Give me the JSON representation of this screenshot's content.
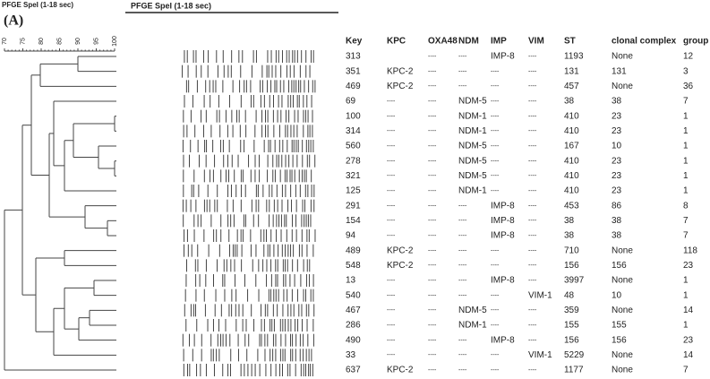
{
  "header": {
    "small_title": "PFGE SpeI (1-18 sec)",
    "gel_title": "PFGE SpeI (1-18 sec)",
    "panel": "(A)"
  },
  "scale": {
    "ticks": [
      70,
      75,
      80,
      85,
      90,
      95,
      100
    ]
  },
  "table": {
    "columns": [
      "Key",
      "KPC",
      "OXA48",
      "NDM",
      "IMP",
      "VIM",
      "ST",
      "clonal complex",
      "group"
    ],
    "rows": [
      [
        "313",
        null,
        "----",
        "----",
        "IMP-8",
        "----",
        "1193",
        "None",
        "12"
      ],
      [
        "351",
        "KPC-2",
        "----",
        "----",
        "----",
        "----",
        "131",
        "131",
        "3"
      ],
      [
        "469",
        "KPC-2",
        "----",
        "----",
        "----",
        "----",
        "457",
        "None",
        "36"
      ],
      [
        "69",
        "----",
        "----",
        "NDM-5",
        "----",
        "----",
        "38",
        "38",
        "7"
      ],
      [
        "100",
        "----",
        "----",
        "NDM-1",
        "----",
        "----",
        "410",
        "23",
        "1"
      ],
      [
        "314",
        "----",
        "----",
        "NDM-1",
        "----",
        "----",
        "410",
        "23",
        "1"
      ],
      [
        "560",
        "----",
        "----",
        "NDM-5",
        "----",
        "----",
        "167",
        "10",
        "1"
      ],
      [
        "278",
        "----",
        "----",
        "NDM-5",
        "----",
        "----",
        "410",
        "23",
        "1"
      ],
      [
        "321",
        "----",
        "----",
        "NDM-5",
        "----",
        "----",
        "410",
        "23",
        "1"
      ],
      [
        "125",
        "----",
        "----",
        "NDM-1",
        "----",
        "----",
        "410",
        "23",
        "1"
      ],
      [
        "291",
        "----",
        "----",
        "----",
        "IMP-8",
        "----",
        "453",
        "86",
        "8"
      ],
      [
        "154",
        "----",
        "----",
        "----",
        "IMP-8",
        "----",
        "38",
        "38",
        "7"
      ],
      [
        "94",
        "----",
        "----",
        "----",
        "IMP-8",
        "----",
        "38",
        "38",
        "7"
      ],
      [
        "489",
        "KPC-2",
        "----",
        "----",
        "----",
        "----",
        "710",
        "None",
        "118"
      ],
      [
        "548",
        "KPC-2",
        "----",
        "----",
        "----",
        "----",
        "156",
        "156",
        "23"
      ],
      [
        "13",
        "----",
        "----",
        "----",
        "IMP-8",
        "----",
        "3997",
        "None",
        "1"
      ],
      [
        "540",
        "----",
        "----",
        "----",
        "----",
        "VIM-1",
        "48",
        "10",
        "1"
      ],
      [
        "467",
        "----",
        "----",
        "NDM-5",
        "----",
        "----",
        "359",
        "None",
        "14"
      ],
      [
        "286",
        "----",
        "----",
        "NDM-1",
        "----",
        "----",
        "155",
        "155",
        "1"
      ],
      [
        "490",
        "----",
        "----",
        "----",
        "IMP-8",
        "----",
        "156",
        "156",
        "23"
      ],
      [
        "33",
        "----",
        "----",
        "----",
        "----",
        "VIM-1",
        "5229",
        "None",
        "14"
      ],
      [
        "637",
        "KPC-2",
        "----",
        "----",
        "----",
        "----",
        "1177",
        "None",
        "7"
      ]
    ]
  }
}
